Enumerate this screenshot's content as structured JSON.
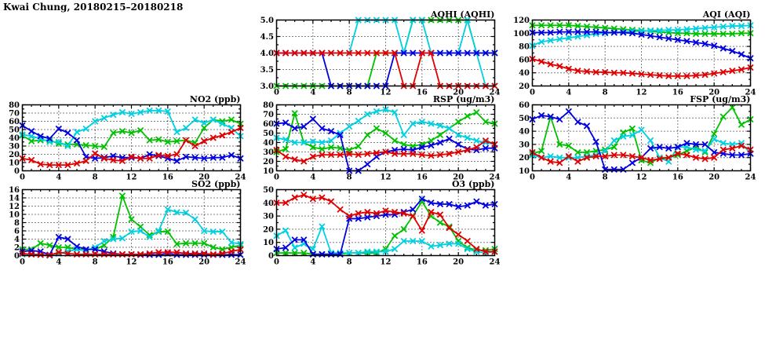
{
  "header": {
    "title": "Kwai Chung, 20180215–20180218"
  },
  "colors": {
    "blue": "#0000e0",
    "red": "#e00000",
    "green": "#00c000",
    "cyan": "#00d0e0"
  },
  "chart_data": [
    {
      "id": "aqhi",
      "type": "line",
      "title": "AQHI (AQHI)",
      "x_start": 0,
      "x_step_hours": 1,
      "xlim": [
        0,
        24
      ],
      "x_ticks": [
        0,
        4,
        8,
        12,
        16,
        20,
        24
      ],
      "ylim": [
        3.0,
        5.0
      ],
      "y_ticks": [
        3.0,
        3.5,
        4.0,
        4.5,
        5.0
      ],
      "y_decimals": 1,
      "grid": true,
      "legend": "none",
      "series": [
        {
          "name": "green",
          "color_key": "green",
          "values": [
            3,
            3,
            3,
            3,
            3,
            3,
            3,
            3,
            3,
            3,
            3,
            4,
            4,
            4,
            4,
            5,
            5,
            5,
            5,
            5,
            5,
            5,
            4,
            4,
            4
          ]
        },
        {
          "name": "cyan",
          "color_key": "cyan",
          "values": [
            4,
            4,
            4,
            4,
            4,
            4,
            4,
            4,
            4,
            5,
            5,
            5,
            5,
            5,
            4,
            5,
            5,
            4,
            4,
            4,
            4,
            5,
            4,
            3,
            3
          ]
        },
        {
          "name": "blue",
          "color_key": "blue",
          "values": [
            4,
            4,
            4,
            4,
            4,
            4,
            3,
            3,
            3,
            3,
            3,
            3,
            3,
            4,
            4,
            4,
            4,
            4,
            4,
            4,
            4,
            4,
            4,
            4,
            4
          ]
        },
        {
          "name": "red",
          "color_key": "red",
          "values": [
            4,
            4,
            4,
            4,
            4,
            4,
            4,
            4,
            4,
            4,
            4,
            4,
            4,
            4,
            3,
            3,
            4,
            4,
            3,
            3,
            3,
            3,
            3,
            3,
            3
          ]
        }
      ]
    },
    {
      "id": "aqi",
      "type": "line",
      "title": "AQI (AQI)",
      "x_start": 0,
      "x_step_hours": 1,
      "xlim": [
        0,
        24
      ],
      "x_ticks": [
        0,
        4,
        8,
        12,
        16,
        20,
        24
      ],
      "ylim": [
        20,
        120
      ],
      "y_ticks": [
        20,
        40,
        60,
        80,
        100,
        120
      ],
      "y_decimals": 0,
      "grid": true,
      "legend": "none",
      "series": [
        {
          "name": "green",
          "color_key": "green",
          "values": [
            112,
            112,
            112,
            112,
            112,
            111,
            110,
            109,
            108,
            107,
            106,
            105,
            104,
            103,
            102,
            101,
            100,
            100,
            99,
            99,
            99,
            99,
            99,
            100,
            100
          ]
        },
        {
          "name": "cyan",
          "color_key": "cyan",
          "values": [
            81,
            87,
            89,
            91,
            93,
            95,
            97,
            99,
            100,
            101,
            102,
            103,
            103,
            104,
            104,
            105,
            105,
            106,
            107,
            108,
            109,
            110,
            111,
            111,
            112
          ]
        },
        {
          "name": "blue",
          "color_key": "blue",
          "values": [
            101,
            101,
            101,
            102,
            102,
            102,
            102,
            102,
            101,
            101,
            101,
            100,
            98,
            96,
            94,
            92,
            90,
            88,
            86,
            84,
            81,
            77,
            73,
            68,
            62
          ]
        },
        {
          "name": "red",
          "color_key": "red",
          "values": [
            61,
            57,
            53,
            50,
            46,
            43,
            42,
            41,
            41,
            40,
            40,
            39,
            38,
            37,
            36,
            35,
            35,
            35,
            36,
            37,
            39,
            41,
            43,
            45,
            48
          ]
        }
      ]
    },
    {
      "id": "no2",
      "type": "line",
      "title": "NO2 (ppb)",
      "x_start": 0,
      "x_step_hours": 1,
      "xlim": [
        0,
        24
      ],
      "x_ticks": [
        0,
        4,
        8,
        12,
        16,
        20,
        24
      ],
      "ylim": [
        0,
        80
      ],
      "y_ticks": [
        0,
        10,
        20,
        30,
        40,
        50,
        60,
        70,
        80
      ],
      "y_decimals": 0,
      "grid": true,
      "legend": "none",
      "series": [
        {
          "name": "green",
          "color_key": "green",
          "values": [
            43,
            36,
            37,
            37,
            33,
            32,
            32,
            31,
            30,
            29,
            46,
            48,
            46,
            49,
            37,
            38,
            35,
            36,
            37,
            34,
            52,
            62,
            60,
            62,
            57
          ]
        },
        {
          "name": "cyan",
          "color_key": "cyan",
          "values": [
            44,
            42,
            39,
            35,
            35,
            30,
            47,
            51,
            60,
            64,
            68,
            71,
            69,
            71,
            73,
            73,
            72,
            47,
            52,
            62,
            58,
            62,
            57,
            52,
            42
          ]
        },
        {
          "name": "blue",
          "color_key": "blue",
          "values": [
            55,
            48,
            42,
            39,
            51,
            46,
            37,
            17,
            15,
            16,
            18,
            16,
            16,
            15,
            20,
            18,
            15,
            12,
            17,
            16,
            15,
            16,
            16,
            19,
            15
          ]
        },
        {
          "name": "red",
          "color_key": "red",
          "values": [
            15,
            13,
            8,
            7,
            7,
            7,
            9,
            12,
            21,
            15,
            13,
            12,
            17,
            15,
            15,
            19,
            18,
            20,
            37,
            30,
            36,
            40,
            43,
            47,
            52
          ]
        }
      ]
    },
    {
      "id": "rsp",
      "type": "line",
      "title": "RSP (ug/m3)",
      "x_start": 0,
      "x_step_hours": 1,
      "xlim": [
        0,
        24
      ],
      "x_ticks": [
        0,
        4,
        8,
        12,
        16,
        20,
        24
      ],
      "ylim": [
        10,
        80
      ],
      "y_ticks": [
        10,
        20,
        30,
        40,
        50,
        60,
        70,
        80
      ],
      "y_decimals": 0,
      "grid": true,
      "legend": "none",
      "series": [
        {
          "name": "green",
          "color_key": "green",
          "values": [
            30,
            33,
            71,
            40,
            35,
            33,
            35,
            34,
            32,
            36,
            48,
            55,
            50,
            42,
            38,
            36,
            38,
            42,
            48,
            55,
            62,
            68,
            72,
            62,
            60
          ]
        },
        {
          "name": "cyan",
          "color_key": "cyan",
          "values": [
            45,
            43,
            40,
            40,
            41,
            40,
            42,
            50,
            57,
            63,
            70,
            73,
            75,
            72,
            48,
            60,
            62,
            60,
            58,
            55,
            48,
            45,
            42,
            40,
            38
          ]
        },
        {
          "name": "blue",
          "color_key": "blue",
          "values": [
            60,
            61,
            55,
            57,
            65,
            55,
            52,
            48,
            10,
            10,
            17,
            25,
            30,
            32,
            33,
            32,
            35,
            37,
            40,
            44,
            38,
            33,
            32,
            34,
            34
          ]
        },
        {
          "name": "red",
          "color_key": "red",
          "values": [
            32,
            25,
            22,
            20,
            25,
            27,
            27,
            27,
            28,
            27,
            28,
            29,
            30,
            28,
            28,
            28,
            27,
            26,
            27,
            28,
            30,
            32,
            35,
            42,
            38
          ]
        }
      ]
    },
    {
      "id": "fsp",
      "type": "line",
      "title": "FSP (ug/m3)",
      "x_start": 0,
      "x_step_hours": 1,
      "xlim": [
        0,
        24
      ],
      "x_ticks": [
        0,
        4,
        8,
        12,
        16,
        20,
        24
      ],
      "ylim": [
        10,
        60
      ],
      "y_ticks": [
        10,
        20,
        30,
        40,
        50,
        60
      ],
      "y_decimals": 0,
      "grid": true,
      "legend": "none",
      "series": [
        {
          "name": "green",
          "color_key": "green",
          "values": [
            23,
            25,
            51,
            30,
            29,
            24,
            24,
            25,
            26,
            28,
            39,
            42,
            18,
            16,
            20,
            20,
            22,
            25,
            28,
            24,
            38,
            51,
            58,
            45,
            49
          ]
        },
        {
          "name": "cyan",
          "color_key": "cyan",
          "values": [
            22,
            20,
            21,
            20,
            20,
            20,
            21,
            22,
            25,
            33,
            36,
            37,
            41,
            33,
            20,
            17,
            28,
            28,
            26,
            25,
            34,
            31,
            30,
            31,
            23
          ]
        },
        {
          "name": "blue",
          "color_key": "blue",
          "values": [
            49,
            52,
            51,
            49,
            55,
            47,
            44,
            32,
            11,
            11,
            11,
            16,
            20,
            27,
            28,
            27,
            28,
            31,
            30,
            30,
            24,
            23,
            22,
            22,
            23
          ]
        },
        {
          "name": "red",
          "color_key": "red",
          "values": [
            24,
            20,
            17,
            16,
            21,
            17,
            20,
            21,
            21,
            22,
            22,
            21,
            20,
            18,
            19,
            20,
            23,
            22,
            20,
            19,
            20,
            26,
            27,
            29,
            26
          ]
        }
      ]
    },
    {
      "id": "so2",
      "type": "line",
      "title": "SO2 (ppb)",
      "x_start": 0,
      "x_step_hours": 1,
      "xlim": [
        0,
        24
      ],
      "x_ticks": [
        0,
        4,
        8,
        12,
        16,
        20,
        24
      ],
      "ylim": [
        0,
        16
      ],
      "y_ticks": [
        0,
        2,
        4,
        6,
        8,
        10,
        12,
        14,
        16
      ],
      "y_decimals": 0,
      "grid": true,
      "legend": "none",
      "series": [
        {
          "name": "green",
          "color_key": "green",
          "values": [
            1.5,
            1.5,
            3,
            2.5,
            2,
            2,
            1.5,
            1.5,
            1.5,
            2.5,
            4.5,
            14.5,
            8.8,
            7,
            5,
            5.8,
            5.8,
            2.8,
            3,
            3,
            3,
            2,
            1.5,
            2,
            2.5
          ]
        },
        {
          "name": "cyan",
          "color_key": "cyan",
          "values": [
            0.3,
            0.3,
            0.2,
            0,
            0.5,
            1,
            1.5,
            1.2,
            2,
            3.5,
            4,
            4.2,
            5.8,
            6,
            4.5,
            6,
            11.2,
            10.5,
            10.4,
            8.8,
            6,
            5.8,
            5.8,
            3.2,
            2.8
          ]
        },
        {
          "name": "blue",
          "color_key": "blue",
          "values": [
            1,
            1.2,
            1,
            0.2,
            4.5,
            4,
            2.2,
            1.5,
            1.5,
            1,
            0.5,
            0.3,
            0.3,
            0.2,
            0.2,
            0.2,
            0.5,
            0.2,
            0.2,
            0.2,
            0.2,
            0.2,
            0.2,
            0.2,
            0.2
          ]
        },
        {
          "name": "red",
          "color_key": "red",
          "values": [
            0.5,
            0.3,
            0.2,
            0.1,
            0.8,
            0.5,
            0.3,
            0.3,
            0.3,
            0.3,
            0.3,
            0.3,
            0.3,
            0.3,
            0.5,
            0.8,
            0.8,
            0.8,
            0.5,
            0.5,
            0.5,
            0.3,
            0.5,
            1,
            1.5
          ]
        }
      ]
    },
    {
      "id": "o3",
      "type": "line",
      "title": "O3 (ppb)",
      "x_start": 0,
      "x_step_hours": 1,
      "xlim": [
        0,
        24
      ],
      "x_ticks": [
        0,
        4,
        8,
        12,
        16,
        20,
        24
      ],
      "ylim": [
        0,
        50
      ],
      "y_ticks": [
        0,
        10,
        20,
        30,
        40,
        50
      ],
      "y_decimals": 0,
      "grid": true,
      "legend": "none",
      "series": [
        {
          "name": "green",
          "color_key": "green",
          "values": [
            2,
            2,
            2,
            2,
            1,
            1,
            1,
            1,
            2,
            2,
            2,
            2,
            5,
            15,
            20,
            30,
            41,
            30,
            25,
            22,
            11,
            6,
            4,
            4,
            5
          ]
        },
        {
          "name": "cyan",
          "color_key": "cyan",
          "values": [
            15,
            19,
            6,
            9,
            5,
            22,
            2,
            2,
            2,
            2,
            3,
            3,
            3,
            5,
            11,
            11,
            11,
            7,
            8,
            9,
            9,
            5,
            3,
            2,
            3
          ]
        },
        {
          "name": "blue",
          "color_key": "blue",
          "values": [
            5,
            6,
            12,
            12,
            1,
            1,
            1,
            1,
            28,
            28,
            29,
            30,
            31,
            31,
            33,
            35,
            43,
            40,
            39,
            39,
            37,
            38,
            41,
            38,
            39
          ]
        },
        {
          "name": "red",
          "color_key": "red",
          "values": [
            40,
            40,
            44,
            46,
            43,
            44,
            41,
            35,
            30,
            32,
            33,
            32,
            34,
            33,
            32,
            30,
            19,
            33,
            31,
            21,
            16,
            11,
            5,
            3,
            3
          ]
        }
      ]
    }
  ]
}
